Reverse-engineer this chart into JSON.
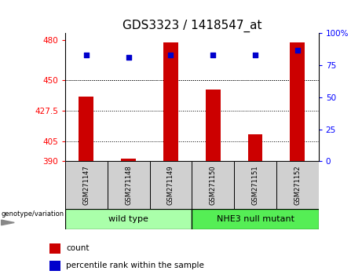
{
  "title": "GDS3323 / 1418547_at",
  "samples": [
    "GSM271147",
    "GSM271148",
    "GSM271149",
    "GSM271150",
    "GSM271151",
    "GSM271152"
  ],
  "counts": [
    438,
    392,
    478,
    443,
    410,
    478
  ],
  "percentiles": [
    83,
    81,
    83,
    83,
    83,
    87
  ],
  "ylim_left": [
    390,
    485
  ],
  "yticks_left": [
    390,
    405,
    427.5,
    450,
    480
  ],
  "ylim_right": [
    0,
    100
  ],
  "yticks_right": [
    0,
    25,
    50,
    75,
    100
  ],
  "bar_color": "#cc0000",
  "dot_color": "#0000cc",
  "bar_bottom": 390,
  "grid_lines": [
    405,
    427.5,
    450
  ],
  "group1_label": "wild type",
  "group1_color": "#aaffaa",
  "group2_label": "NHE3 null mutant",
  "group2_color": "#55ee55",
  "genotype_label": "genotype/variation",
  "legend_count": "count",
  "legend_percentile": "percentile rank within the sample",
  "title_fontsize": 11,
  "tick_fontsize": 7.5,
  "sample_label_fontsize": 6,
  "group_label_fontsize": 8,
  "legend_fontsize": 7.5
}
